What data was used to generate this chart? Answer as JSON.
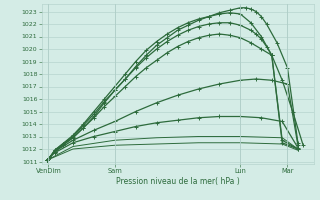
{
  "bg_color": "#d4ece6",
  "grid_color": "#b0cfc8",
  "line_color": "#2d6b3c",
  "title": "Pression niveau de la mer( hPa )",
  "yticks": [
    1011,
    1012,
    1013,
    1014,
    1015,
    1016,
    1017,
    1018,
    1019,
    1020,
    1021,
    1022,
    1023
  ],
  "ylim": [
    1010.8,
    1023.6
  ],
  "xlim": [
    -0.05,
    5.15
  ],
  "xtick_labels": [
    "VenDim",
    "Sam",
    "Lun",
    "Mar"
  ],
  "xtick_positions": [
    0.08,
    1.35,
    3.75,
    4.65
  ],
  "lines": [
    {
      "x": [
        0.05,
        0.12,
        0.2,
        0.35,
        0.55,
        0.75,
        0.95,
        1.15,
        1.35,
        1.55,
        1.75,
        1.95,
        2.15,
        2.35,
        2.55,
        2.75,
        2.95,
        3.15,
        3.35,
        3.55,
        3.75,
        3.85,
        3.95,
        4.05,
        4.15,
        4.25,
        4.45,
        4.65,
        4.85
      ],
      "y": [
        1011.1,
        1011.4,
        1011.8,
        1012.3,
        1012.9,
        1013.7,
        1014.6,
        1015.7,
        1016.7,
        1017.6,
        1018.6,
        1019.5,
        1020.3,
        1020.9,
        1021.5,
        1021.9,
        1022.3,
        1022.6,
        1022.9,
        1023.1,
        1023.3,
        1023.3,
        1023.2,
        1023.0,
        1022.6,
        1022.0,
        1020.5,
        1018.5,
        1012.5
      ],
      "marker": "+",
      "lw": 0.9
    },
    {
      "x": [
        0.05,
        0.12,
        0.2,
        0.35,
        0.55,
        0.75,
        0.95,
        1.15,
        1.35,
        1.55,
        1.75,
        1.95,
        2.15,
        2.35,
        2.55,
        2.75,
        2.95,
        3.15,
        3.35,
        3.55,
        3.75,
        3.95,
        4.15,
        4.35,
        4.55,
        4.75,
        4.95
      ],
      "y": [
        1011.1,
        1011.4,
        1011.9,
        1012.4,
        1013.1,
        1014.0,
        1015.0,
        1016.0,
        1017.0,
        1018.0,
        1019.0,
        1019.9,
        1020.6,
        1021.2,
        1021.7,
        1022.1,
        1022.4,
        1022.6,
        1022.8,
        1022.9,
        1022.8,
        1022.1,
        1021.0,
        1019.5,
        1017.5,
        1015.0,
        1012.3
      ],
      "marker": "+",
      "lw": 0.9
    },
    {
      "x": [
        0.05,
        0.12,
        0.2,
        0.35,
        0.55,
        0.75,
        0.95,
        1.15,
        1.35,
        1.55,
        1.75,
        1.95,
        2.15,
        2.35,
        2.55,
        2.75,
        2.95,
        3.15,
        3.35,
        3.55,
        3.75,
        3.95,
        4.05,
        4.15,
        4.25,
        4.35,
        4.55,
        4.85
      ],
      "y": [
        1011.1,
        1011.4,
        1011.9,
        1012.4,
        1013.0,
        1013.9,
        1014.8,
        1015.8,
        1016.7,
        1017.6,
        1018.5,
        1019.3,
        1020.0,
        1020.6,
        1021.1,
        1021.5,
        1021.8,
        1022.0,
        1022.1,
        1022.1,
        1021.9,
        1021.5,
        1021.2,
        1020.8,
        1020.2,
        1019.5,
        1012.7,
        1012.0
      ],
      "marker": "+",
      "lw": 0.9
    },
    {
      "x": [
        0.05,
        0.12,
        0.2,
        0.35,
        0.55,
        0.75,
        0.95,
        1.15,
        1.35,
        1.55,
        1.75,
        1.95,
        2.15,
        2.35,
        2.55,
        2.75,
        2.95,
        3.15,
        3.35,
        3.55,
        3.75,
        3.95,
        4.15,
        4.35,
        4.55,
        4.85
      ],
      "y": [
        1011.1,
        1011.4,
        1011.8,
        1012.3,
        1012.9,
        1013.7,
        1014.5,
        1015.4,
        1016.2,
        1017.0,
        1017.8,
        1018.5,
        1019.1,
        1019.7,
        1020.2,
        1020.6,
        1020.9,
        1021.1,
        1021.2,
        1021.1,
        1020.9,
        1020.5,
        1020.0,
        1019.5,
        1012.5,
        1012.0
      ],
      "marker": "+",
      "lw": 0.9
    },
    {
      "x": [
        0.05,
        0.2,
        0.55,
        0.95,
        1.35,
        1.75,
        2.15,
        2.55,
        2.95,
        3.35,
        3.75,
        4.05,
        4.35,
        4.65,
        4.85
      ],
      "y": [
        1011.1,
        1011.8,
        1012.7,
        1013.5,
        1014.2,
        1015.0,
        1015.7,
        1016.3,
        1016.8,
        1017.2,
        1017.5,
        1017.6,
        1017.5,
        1017.2,
        1012.3
      ],
      "marker": "+",
      "lw": 0.9
    },
    {
      "x": [
        0.05,
        0.2,
        0.55,
        0.95,
        1.35,
        1.75,
        2.15,
        2.55,
        2.95,
        3.35,
        3.75,
        4.15,
        4.55,
        4.85
      ],
      "y": [
        1011.1,
        1011.7,
        1012.5,
        1013.0,
        1013.4,
        1013.8,
        1014.1,
        1014.3,
        1014.5,
        1014.6,
        1014.6,
        1014.5,
        1014.2,
        1012.1
      ],
      "marker": "+",
      "lw": 0.9
    },
    {
      "x": [
        0.05,
        0.55,
        1.35,
        2.15,
        2.95,
        3.75,
        4.55,
        4.85
      ],
      "y": [
        1011.1,
        1012.2,
        1012.7,
        1012.9,
        1013.0,
        1013.0,
        1012.9,
        1012.0
      ],
      "marker": null,
      "lw": 0.7
    },
    {
      "x": [
        0.05,
        0.55,
        1.35,
        2.15,
        2.95,
        3.75,
        4.55,
        4.85
      ],
      "y": [
        1011.1,
        1012.0,
        1012.3,
        1012.4,
        1012.5,
        1012.5,
        1012.4,
        1011.9
      ],
      "marker": null,
      "lw": 0.7
    }
  ]
}
